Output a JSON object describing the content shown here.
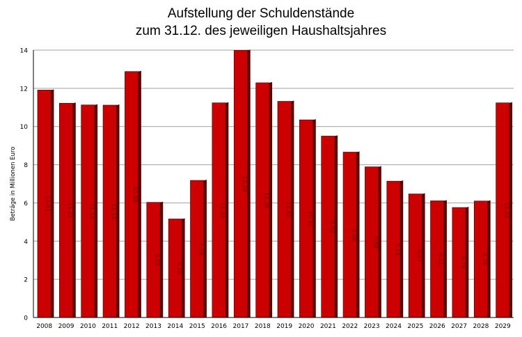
{
  "chart_data": {
    "type": "bar",
    "title_line_1": "Aufstellung der Schuldenstände",
    "title_line_2": "zum 31.12. des jeweiligen Haushaltsjahres",
    "ylabel": "Beträge in Millionen Euro",
    "xlabel": "",
    "ylim": [
      0,
      14
    ],
    "yticks": [
      0,
      2,
      4,
      6,
      8,
      10,
      12,
      14
    ],
    "grid": true,
    "categories": [
      "2008",
      "2009",
      "2010",
      "2011",
      "2012",
      "2013",
      "2014",
      "2015",
      "2016",
      "2017",
      "2018",
      "2019",
      "2020",
      "2021",
      "2022",
      "2023",
      "2024",
      "2025",
      "2026",
      "2027",
      "2028",
      "2029"
    ],
    "values": [
      11.91,
      11.22,
      11.13,
      11.12,
      12.88,
      6.03,
      5.16,
      7.18,
      11.24,
      13.99,
      12.29,
      11.32,
      10.35,
      9.5,
      8.66,
      7.89,
      7.14,
      6.47,
      6.11,
      5.76,
      6.1,
      11.24
    ],
    "value_labels": [
      "11.91",
      "11.22",
      "11.13",
      "11.12",
      "12.88",
      "6.03",
      "5.16",
      "7.18",
      "11.24",
      "13.99",
      "12.29",
      "11.32",
      "10.35",
      "9.50",
      "8.66",
      "7.89",
      "7.14",
      "6.47",
      "6.11",
      "5.76",
      "6.10",
      "11.24"
    ],
    "bar_color": "#cc0000",
    "bar_side_color": "#5a0000",
    "grid_color": "#a0a0a0"
  }
}
